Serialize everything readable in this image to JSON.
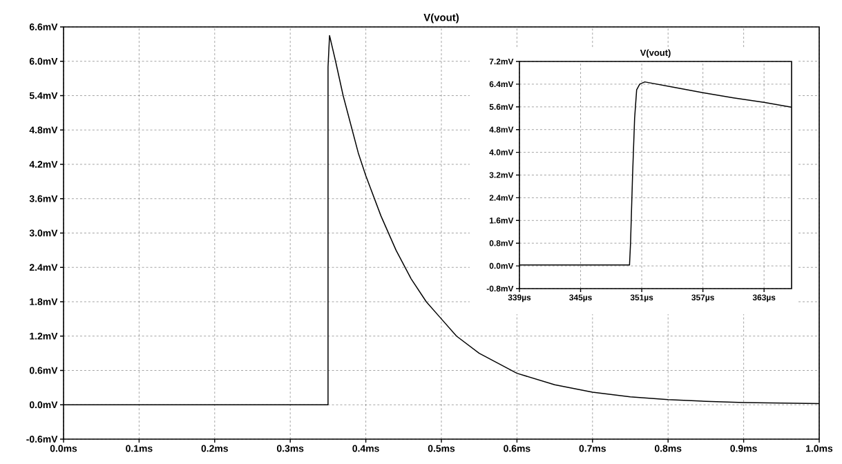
{
  "chart_data": [
    {
      "type": "line",
      "title": "V(vout)",
      "grid": true,
      "line_style": "solid",
      "marker": "none",
      "x": [
        0,
        0.35,
        0.35,
        0.352,
        0.36,
        0.37,
        0.38,
        0.39,
        0.4,
        0.42,
        0.44,
        0.46,
        0.48,
        0.5,
        0.52,
        0.55,
        0.6,
        0.65,
        0.7,
        0.75,
        0.8,
        0.85,
        0.9,
        0.95,
        1.0
      ],
      "series": [
        {
          "color": "#000000",
          "values": [
            0,
            0,
            5.9,
            6.45,
            6.0,
            5.4,
            4.9,
            4.4,
            4.0,
            3.3,
            2.7,
            2.2,
            1.8,
            1.5,
            1.2,
            0.9,
            0.55,
            0.35,
            0.22,
            0.14,
            0.09,
            0.06,
            0.04,
            0.03,
            0.02
          ]
        }
      ],
      "xlim": [
        0,
        1.0
      ],
      "ylim": [
        -0.6,
        6.6
      ],
      "xticks": [
        {
          "value": 0,
          "label": "0.0ms"
        },
        {
          "value": 0.1,
          "label": "0.1ms"
        },
        {
          "value": 0.2,
          "label": "0.2ms"
        },
        {
          "value": 0.3,
          "label": "0.3ms"
        },
        {
          "value": 0.4,
          "label": "0.4ms"
        },
        {
          "value": 0.5,
          "label": "0.5ms"
        },
        {
          "value": 0.6,
          "label": "0.6ms"
        },
        {
          "value": 0.7,
          "label": "0.7ms"
        },
        {
          "value": 0.8,
          "label": "0.8ms"
        },
        {
          "value": 0.9,
          "label": "0.9ms"
        },
        {
          "value": 1.0,
          "label": "1.0ms"
        }
      ],
      "yticks": [
        {
          "value": -0.6,
          "label": "-0.6mV"
        },
        {
          "value": 0,
          "label": "0.0mV"
        },
        {
          "value": 0.6,
          "label": "0.6mV"
        },
        {
          "value": 1.2,
          "label": "1.2mV"
        },
        {
          "value": 1.8,
          "label": "1.8mV"
        },
        {
          "value": 2.4,
          "label": "2.4mV"
        },
        {
          "value": 3.0,
          "label": "3.0mV"
        },
        {
          "value": 3.6,
          "label": "3.6mV"
        },
        {
          "value": 4.2,
          "label": "4.2mV"
        },
        {
          "value": 4.8,
          "label": "4.8mV"
        },
        {
          "value": 5.4,
          "label": "5.4mV"
        },
        {
          "value": 6.0,
          "label": "6.0mV"
        },
        {
          "value": 6.6,
          "label": "6.6mV"
        }
      ]
    },
    {
      "type": "line",
      "title": "V(vout)",
      "grid": true,
      "line_style": "solid",
      "marker": "none",
      "x": [
        339,
        349.8,
        349.9,
        350.1,
        350.3,
        350.5,
        350.8,
        351.3,
        354,
        357,
        360,
        363,
        365.7
      ],
      "series": [
        {
          "color": "#000000",
          "values": [
            0.03,
            0.03,
            0.8,
            3.2,
            5.2,
            6.2,
            6.4,
            6.48,
            6.3,
            6.1,
            5.92,
            5.76,
            5.59
          ]
        }
      ],
      "xlim": [
        339,
        365.7
      ],
      "ylim": [
        -0.8,
        7.2
      ],
      "xticks": [
        {
          "value": 339,
          "label": "339µs"
        },
        {
          "value": 345,
          "label": "345µs"
        },
        {
          "value": 351,
          "label": "351µs"
        },
        {
          "value": 357,
          "label": "357µs"
        },
        {
          "value": 363,
          "label": "363µs"
        }
      ],
      "yticks": [
        {
          "value": -0.8,
          "label": "-0.8mV"
        },
        {
          "value": 0,
          "label": "0.0mV"
        },
        {
          "value": 0.8,
          "label": "0.8mV"
        },
        {
          "value": 1.6,
          "label": "1.6mV"
        },
        {
          "value": 2.4,
          "label": "2.4mV"
        },
        {
          "value": 3.2,
          "label": "3.2mV"
        },
        {
          "value": 4.0,
          "label": "4.0mV"
        },
        {
          "value": 4.8,
          "label": "4.8mV"
        },
        {
          "value": 5.6,
          "label": "5.6mV"
        },
        {
          "value": 6.4,
          "label": "6.4mV"
        },
        {
          "value": 7.2,
          "label": "7.2mV"
        }
      ]
    }
  ]
}
